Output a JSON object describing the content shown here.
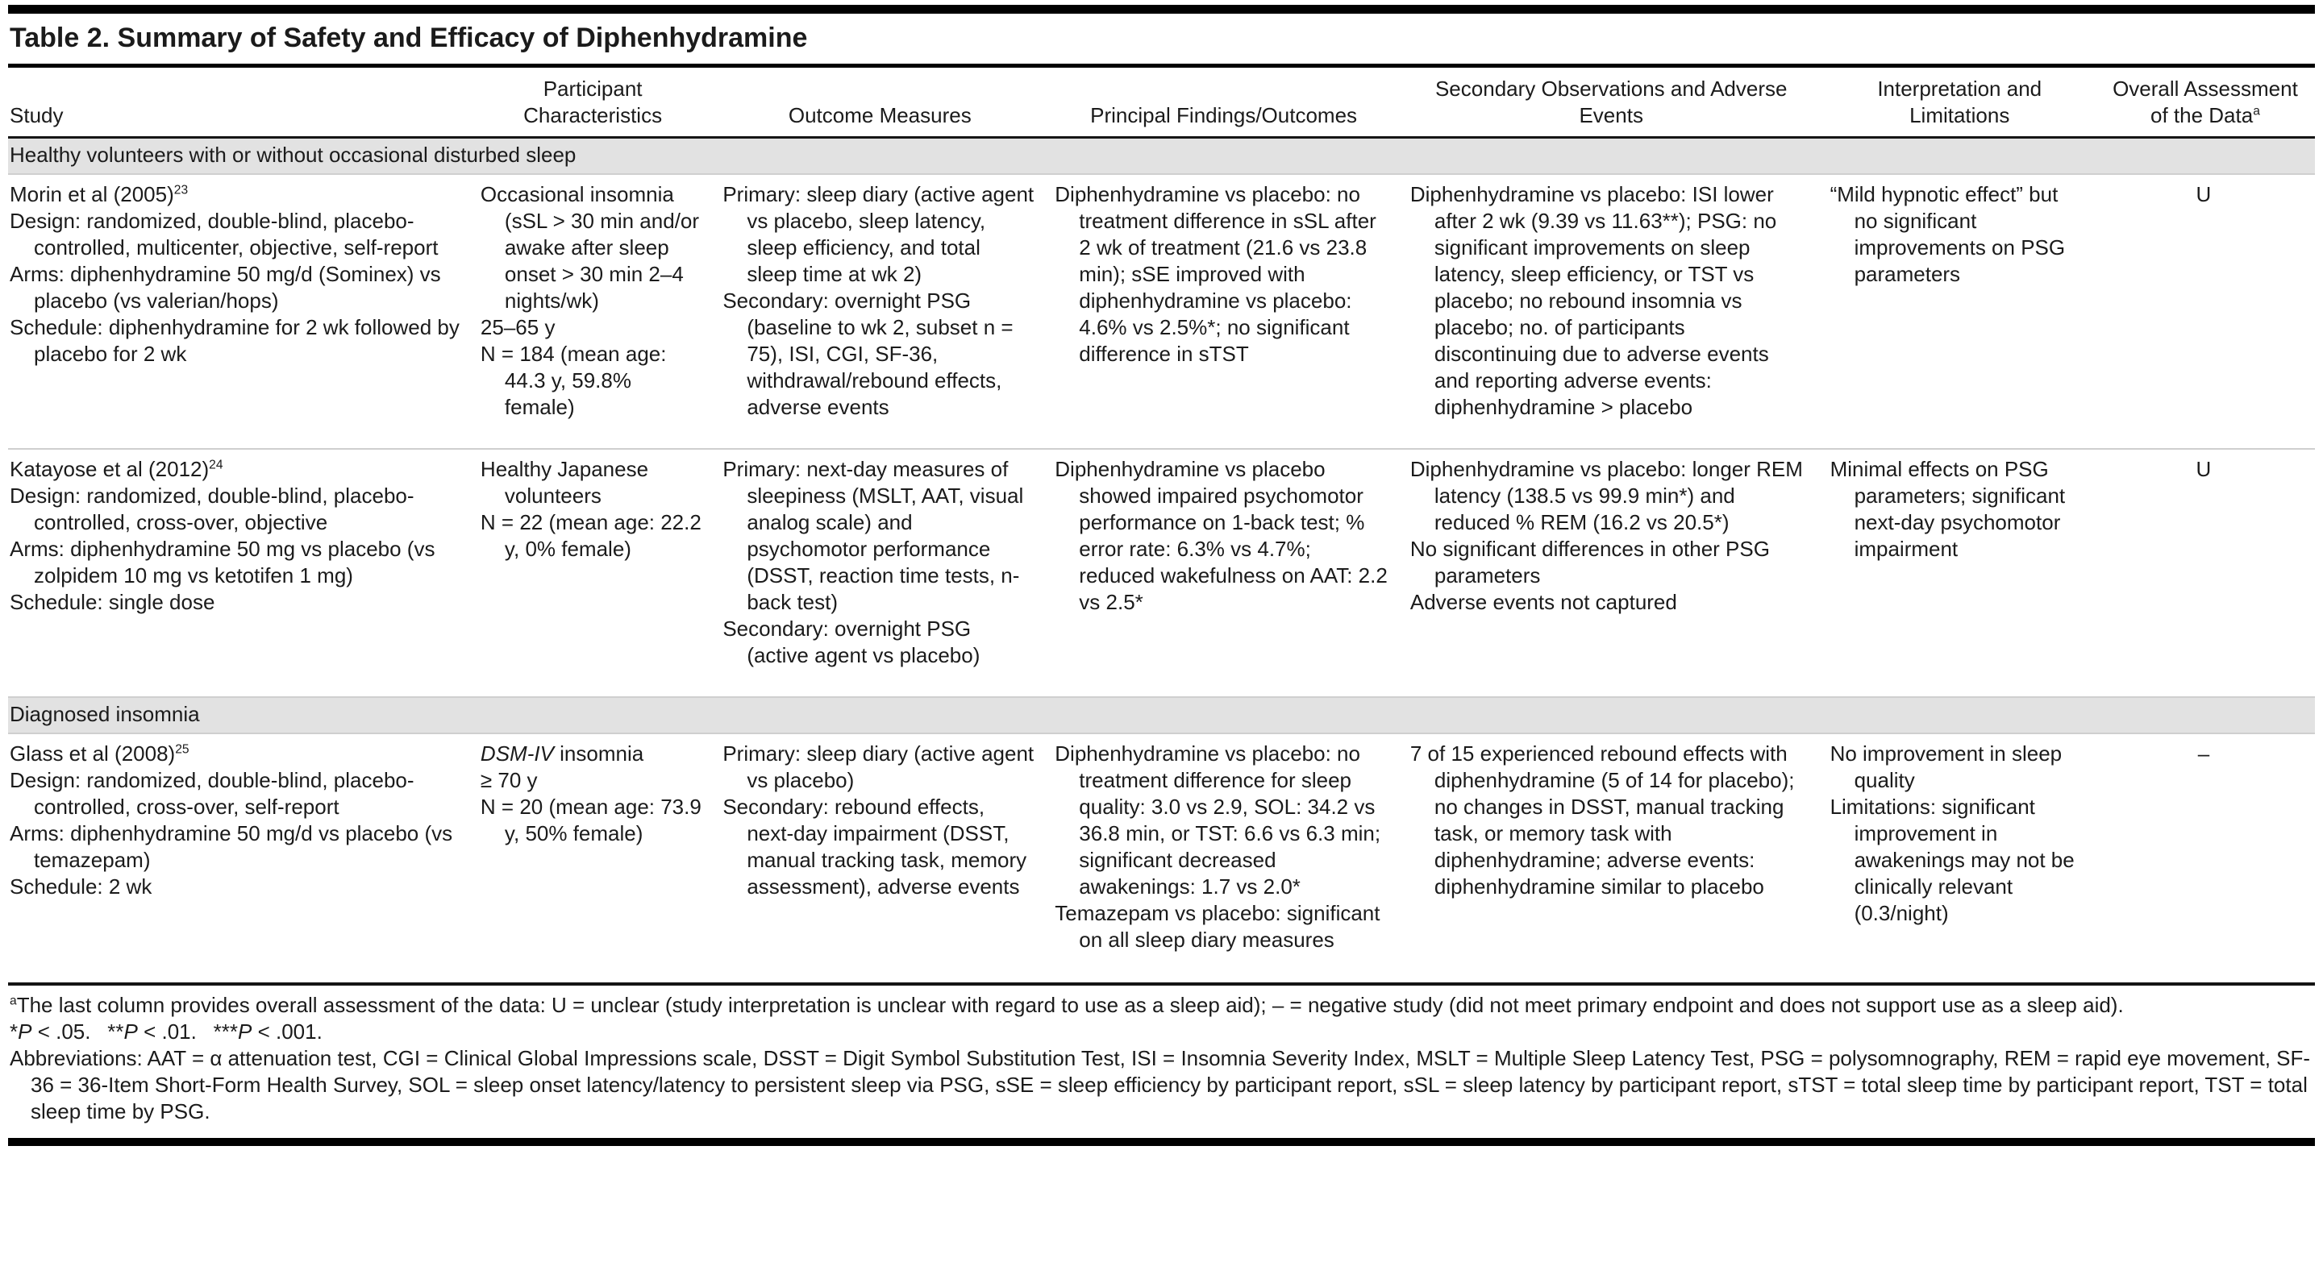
{
  "page": {
    "title": "Table 2. Summary of Safety and Efficacy of Diphenhydramine"
  },
  "table": {
    "columns": [
      "Study",
      "Participant Characteristics",
      "Outcome Measures",
      "Principal Findings/Outcomes",
      "Secondary Observations and Adverse Events",
      "Interpretation and Limitations",
      "Overall Assessment of the Data"
    ],
    "column_note_marker": "a",
    "sections": [
      {
        "header": "Healthy volunteers with or without occasional disturbed sleep",
        "rows": [
          {
            "cells": [
              [
                [
                  {
                    "t": "Morin et al (2005)"
                  },
                  {
                    "sup": "23"
                  }
                ],
                "Design: randomized, double-blind, placebo-controlled, multicenter, objective, self-report",
                "Arms: diphenhydramine 50 mg/d (Sominex) vs placebo (vs valerian/hops)",
                "Schedule: diphenhydramine for 2 wk followed by placebo for 2 wk"
              ],
              [
                "Occasional insomnia (sSL > 30 min and/or awake after sleep onset > 30 min 2–4 nights/wk)",
                "25–65 y",
                "N = 184 (mean age: 44.3 y, 59.8% female)"
              ],
              [
                "Primary: sleep diary (active agent vs placebo, sleep latency, sleep efficiency, and total sleep time at wk 2)",
                "Secondary: overnight PSG (baseline to wk 2, subset n = 75), ISI, CGI, SF-36, withdrawal/rebound effects, adverse events"
              ],
              [
                "Diphenhydramine vs placebo: no treatment difference in sSL after 2 wk of treatment (21.6 vs 23.8 min); sSE improved with diphenhydramine vs placebo: 4.6% vs 2.5%*; no significant difference in sTST"
              ],
              [
                "Diphenhydramine vs placebo: ISI lower after 2 wk (9.39 vs 11.63**); PSG: no significant improvements on sleep latency, sleep efficiency, or TST vs placebo; no rebound insomnia vs placebo; no. of participants discontinuing due to adverse events and reporting adverse events: diphenhydramine > placebo"
              ],
              [
                "“Mild hypnotic effect” but no significant improvements on PSG parameters"
              ],
              [
                "U"
              ]
            ]
          },
          {
            "cells": [
              [
                [
                  {
                    "t": "Katayose et al (2012)"
                  },
                  {
                    "sup": "24"
                  }
                ],
                "Design: randomized, double-blind, placebo-controlled, cross-over, objective",
                "Arms: diphenhydramine 50 mg vs placebo (vs zolpidem 10 mg vs ketotifen 1 mg)",
                "Schedule: single dose"
              ],
              [
                "Healthy Japanese volunteers",
                "N = 22 (mean age: 22.2 y, 0% female)"
              ],
              [
                "Primary: next-day measures of sleepiness (MSLT, AAT, visual analog scale) and psychomotor performance (DSST, reaction time tests, n-back test)",
                "Secondary: overnight PSG (active agent vs placebo)"
              ],
              [
                "Diphenhydramine vs placebo showed impaired psychomotor performance on 1-back test; % error rate: 6.3% vs 4.7%; reduced wakefulness on AAT: 2.2 vs 2.5*"
              ],
              [
                "Diphenhydramine vs placebo: longer REM latency (138.5 vs 99.9 min*) and reduced % REM (16.2 vs 20.5*)",
                "No significant differences in other PSG parameters",
                "Adverse events not captured"
              ],
              [
                "Minimal effects on PSG parameters; significant next-day psychomotor impairment"
              ],
              [
                "U"
              ]
            ]
          }
        ]
      },
      {
        "header": "Diagnosed insomnia",
        "rows": [
          {
            "cells": [
              [
                [
                  {
                    "t": "Glass et al (2008)"
                  },
                  {
                    "sup": "25"
                  }
                ],
                "Design: randomized, double-blind, placebo-controlled, cross-over, self-report",
                "Arms: diphenhydramine 50 mg/d vs placebo (vs temazepam)",
                "Schedule: 2 wk"
              ],
              [
                [
                  {
                    "i": "DSM-IV"
                  },
                  {
                    "t": " insomnia"
                  }
                ],
                "≥ 70 y",
                "N = 20 (mean age: 73.9 y, 50% female)"
              ],
              [
                "Primary: sleep diary (active agent vs placebo)",
                "Secondary: rebound effects, next-day impairment (DSST, manual tracking task, memory assessment), adverse events"
              ],
              [
                "Diphenhydramine vs placebo: no treatment difference for sleep quality: 3.0 vs 2.9, SOL: 34.2 vs 36.8 min, or TST: 6.6 vs 6.3 min; significant decreased awakenings: 1.7 vs 2.0*",
                "Temazepam vs placebo: significant on all sleep diary measures"
              ],
              [
                "7 of 15 experienced rebound effects with diphenhydramine (5 of 14 for placebo); no changes in DSST, manual tracking task, or memory task with diphenhydramine; adverse events: diphenhydramine similar to placebo"
              ],
              [
                "No improvement in sleep quality",
                "Limitations: significant improvement in awakenings may not be clinically relevant (0.3/night)"
              ],
              [
                "–"
              ]
            ]
          }
        ]
      }
    ]
  },
  "footnotes": {
    "a_marker": "a",
    "a_text": "The last column provides overall assessment of the data: U = unclear (study interpretation is unclear with regard to use as a sleep aid); – = negative study (did not meet primary endpoint and does not support use as a sleep aid).",
    "pvalues": [
      {
        "stars": "*",
        "p": "P",
        "rest": " < .05."
      },
      {
        "stars": "**",
        "p": "P",
        "rest": " < .01."
      },
      {
        "stars": "***",
        "p": "P",
        "rest": " < .001."
      }
    ],
    "abbreviations": "Abbreviations: AAT = α attenuation test, CGI = Clinical Global Impressions scale, DSST = Digit Symbol Substitution Test, ISI = Insomnia Severity Index, MSLT = Multiple Sleep Latency Test, PSG = polysomnography, REM = rapid eye movement, SF-36 = 36-Item Short-Form Health Survey, SOL = sleep onset latency/latency to persistent sleep via PSG, sSE = sleep efficiency by participant report, sSL = sleep latency by participant report, sTST = total sleep time by participant report, TST = total sleep time by PSG."
  }
}
